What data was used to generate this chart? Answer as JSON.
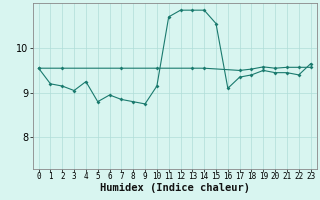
{
  "xlabel": "Humidex (Indice chaleur)",
  "background_color": "#d8f5f0",
  "grid_color": "#b0ddd8",
  "line_color": "#1a7a6e",
  "xlim": [
    -0.5,
    23.5
  ],
  "ylim": [
    7.3,
    11.0
  ],
  "yticks": [
    8,
    9,
    10
  ],
  "xticks": [
    0,
    1,
    2,
    3,
    4,
    5,
    6,
    7,
    8,
    9,
    10,
    11,
    12,
    13,
    14,
    15,
    16,
    17,
    18,
    19,
    20,
    21,
    22,
    23
  ],
  "line1_x": [
    0,
    1,
    2,
    3,
    4,
    5,
    6,
    7,
    8,
    9,
    10,
    11,
    12,
    13,
    14,
    15,
    16,
    17,
    18,
    19,
    20,
    21,
    22,
    23
  ],
  "line1_y": [
    9.55,
    9.2,
    9.15,
    9.05,
    9.25,
    8.8,
    8.95,
    8.85,
    8.8,
    8.75,
    9.15,
    10.7,
    10.85,
    10.85,
    10.85,
    10.55,
    9.1,
    9.35,
    9.4,
    9.5,
    9.45,
    9.45,
    9.4,
    9.65
  ],
  "line2_x": [
    0,
    2,
    7,
    10,
    13,
    14,
    17,
    18,
    19,
    20,
    21,
    22,
    23
  ],
  "line2_y": [
    9.55,
    9.55,
    9.55,
    9.55,
    9.55,
    9.55,
    9.5,
    9.53,
    9.58,
    9.55,
    9.57,
    9.57,
    9.57
  ],
  "tick_fontsize": 5.5,
  "xlabel_fontsize": 7.5,
  "ytick_fontsize": 7
}
